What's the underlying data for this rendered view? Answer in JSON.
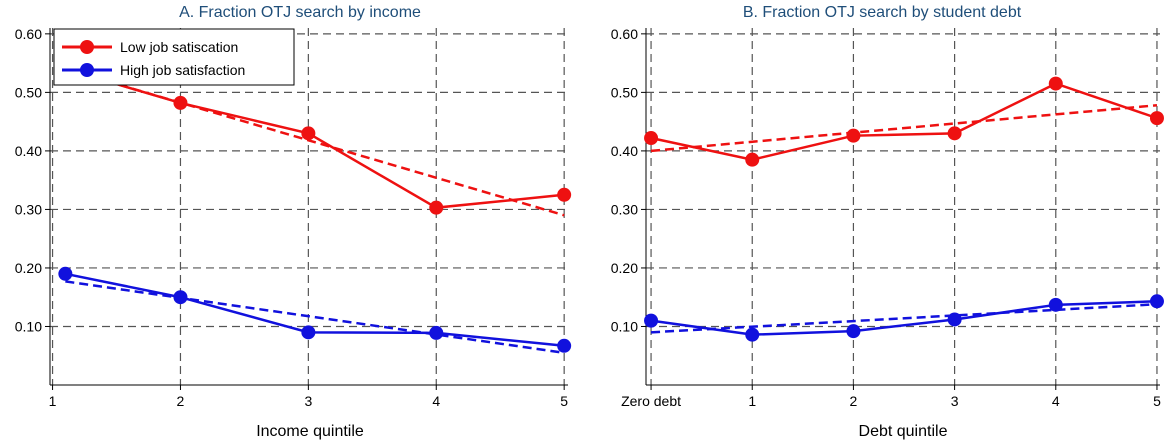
{
  "colors": {
    "low": "#ee1111",
    "high": "#1111dd",
    "grid": "#555555",
    "axis": "#000000",
    "title": "#1f4e79"
  },
  "legend": {
    "placement": "top-left",
    "items": [
      {
        "label": "Low job satiscation",
        "color": "#ee1111"
      },
      {
        "label": "High job satisfaction",
        "color": "#1111dd"
      }
    ]
  },
  "chart_data": [
    {
      "type": "line",
      "title": "A. Fraction OTJ search by income",
      "xlabel": "Income quintile",
      "ylabel": "",
      "x_tick_labels": [
        "1",
        "2",
        "3",
        "4",
        "5"
      ],
      "y_tick_labels": [
        "0.10",
        "0.20",
        "0.30",
        "0.40",
        "0.50",
        "0.60"
      ],
      "y_ticks": [
        0.1,
        0.2,
        0.3,
        0.4,
        0.5,
        0.6
      ],
      "xlim": [
        0.98,
        5.03
      ],
      "ylim": [
        0.0,
        0.61
      ],
      "grid": true,
      "series": [
        {
          "name": "Low job satiscation",
          "x": [
            1.1,
            2,
            3,
            4,
            5
          ],
          "y": [
            0.54,
            0.482,
            0.43,
            0.303,
            0.325
          ],
          "fit": {
            "x": [
              1.1,
              5
            ],
            "y": [
              0.54,
              0.29
            ]
          }
        },
        {
          "name": "High job satisfaction",
          "x": [
            1.1,
            2,
            3,
            4,
            5
          ],
          "y": [
            0.19,
            0.15,
            0.09,
            0.089,
            0.067
          ],
          "fit": {
            "x": [
              1.1,
              5
            ],
            "y": [
              0.177,
              0.055
            ]
          }
        }
      ]
    },
    {
      "type": "line",
      "title": "B. Fraction OTJ search by student debt",
      "xlabel": "Debt quintile",
      "ylabel": "",
      "x_tick_labels": [
        "Zero debt",
        "1",
        "2",
        "3",
        "4",
        "5"
      ],
      "y_tick_labels": [
        "0.10",
        "0.20",
        "0.30",
        "0.40",
        "0.50",
        "0.60"
      ],
      "y_ticks": [
        0.1,
        0.2,
        0.3,
        0.4,
        0.5,
        0.6
      ],
      "xlim": [
        -0.05,
        5.03
      ],
      "ylim": [
        0.0,
        0.61
      ],
      "grid": true,
      "series": [
        {
          "name": "Low job satiscation",
          "x": [
            0,
            1,
            2,
            3,
            4,
            5
          ],
          "y": [
            0.422,
            0.385,
            0.426,
            0.43,
            0.515,
            0.456
          ],
          "fit": {
            "x": [
              0,
              5
            ],
            "y": [
              0.4,
              0.478
            ]
          }
        },
        {
          "name": "High job satisfaction",
          "x": [
            0,
            1,
            2,
            3,
            4,
            5
          ],
          "y": [
            0.11,
            0.086,
            0.092,
            0.112,
            0.137,
            0.143
          ],
          "fit": {
            "x": [
              0,
              5
            ],
            "y": [
              0.09,
              0.138
            ]
          }
        }
      ]
    }
  ]
}
